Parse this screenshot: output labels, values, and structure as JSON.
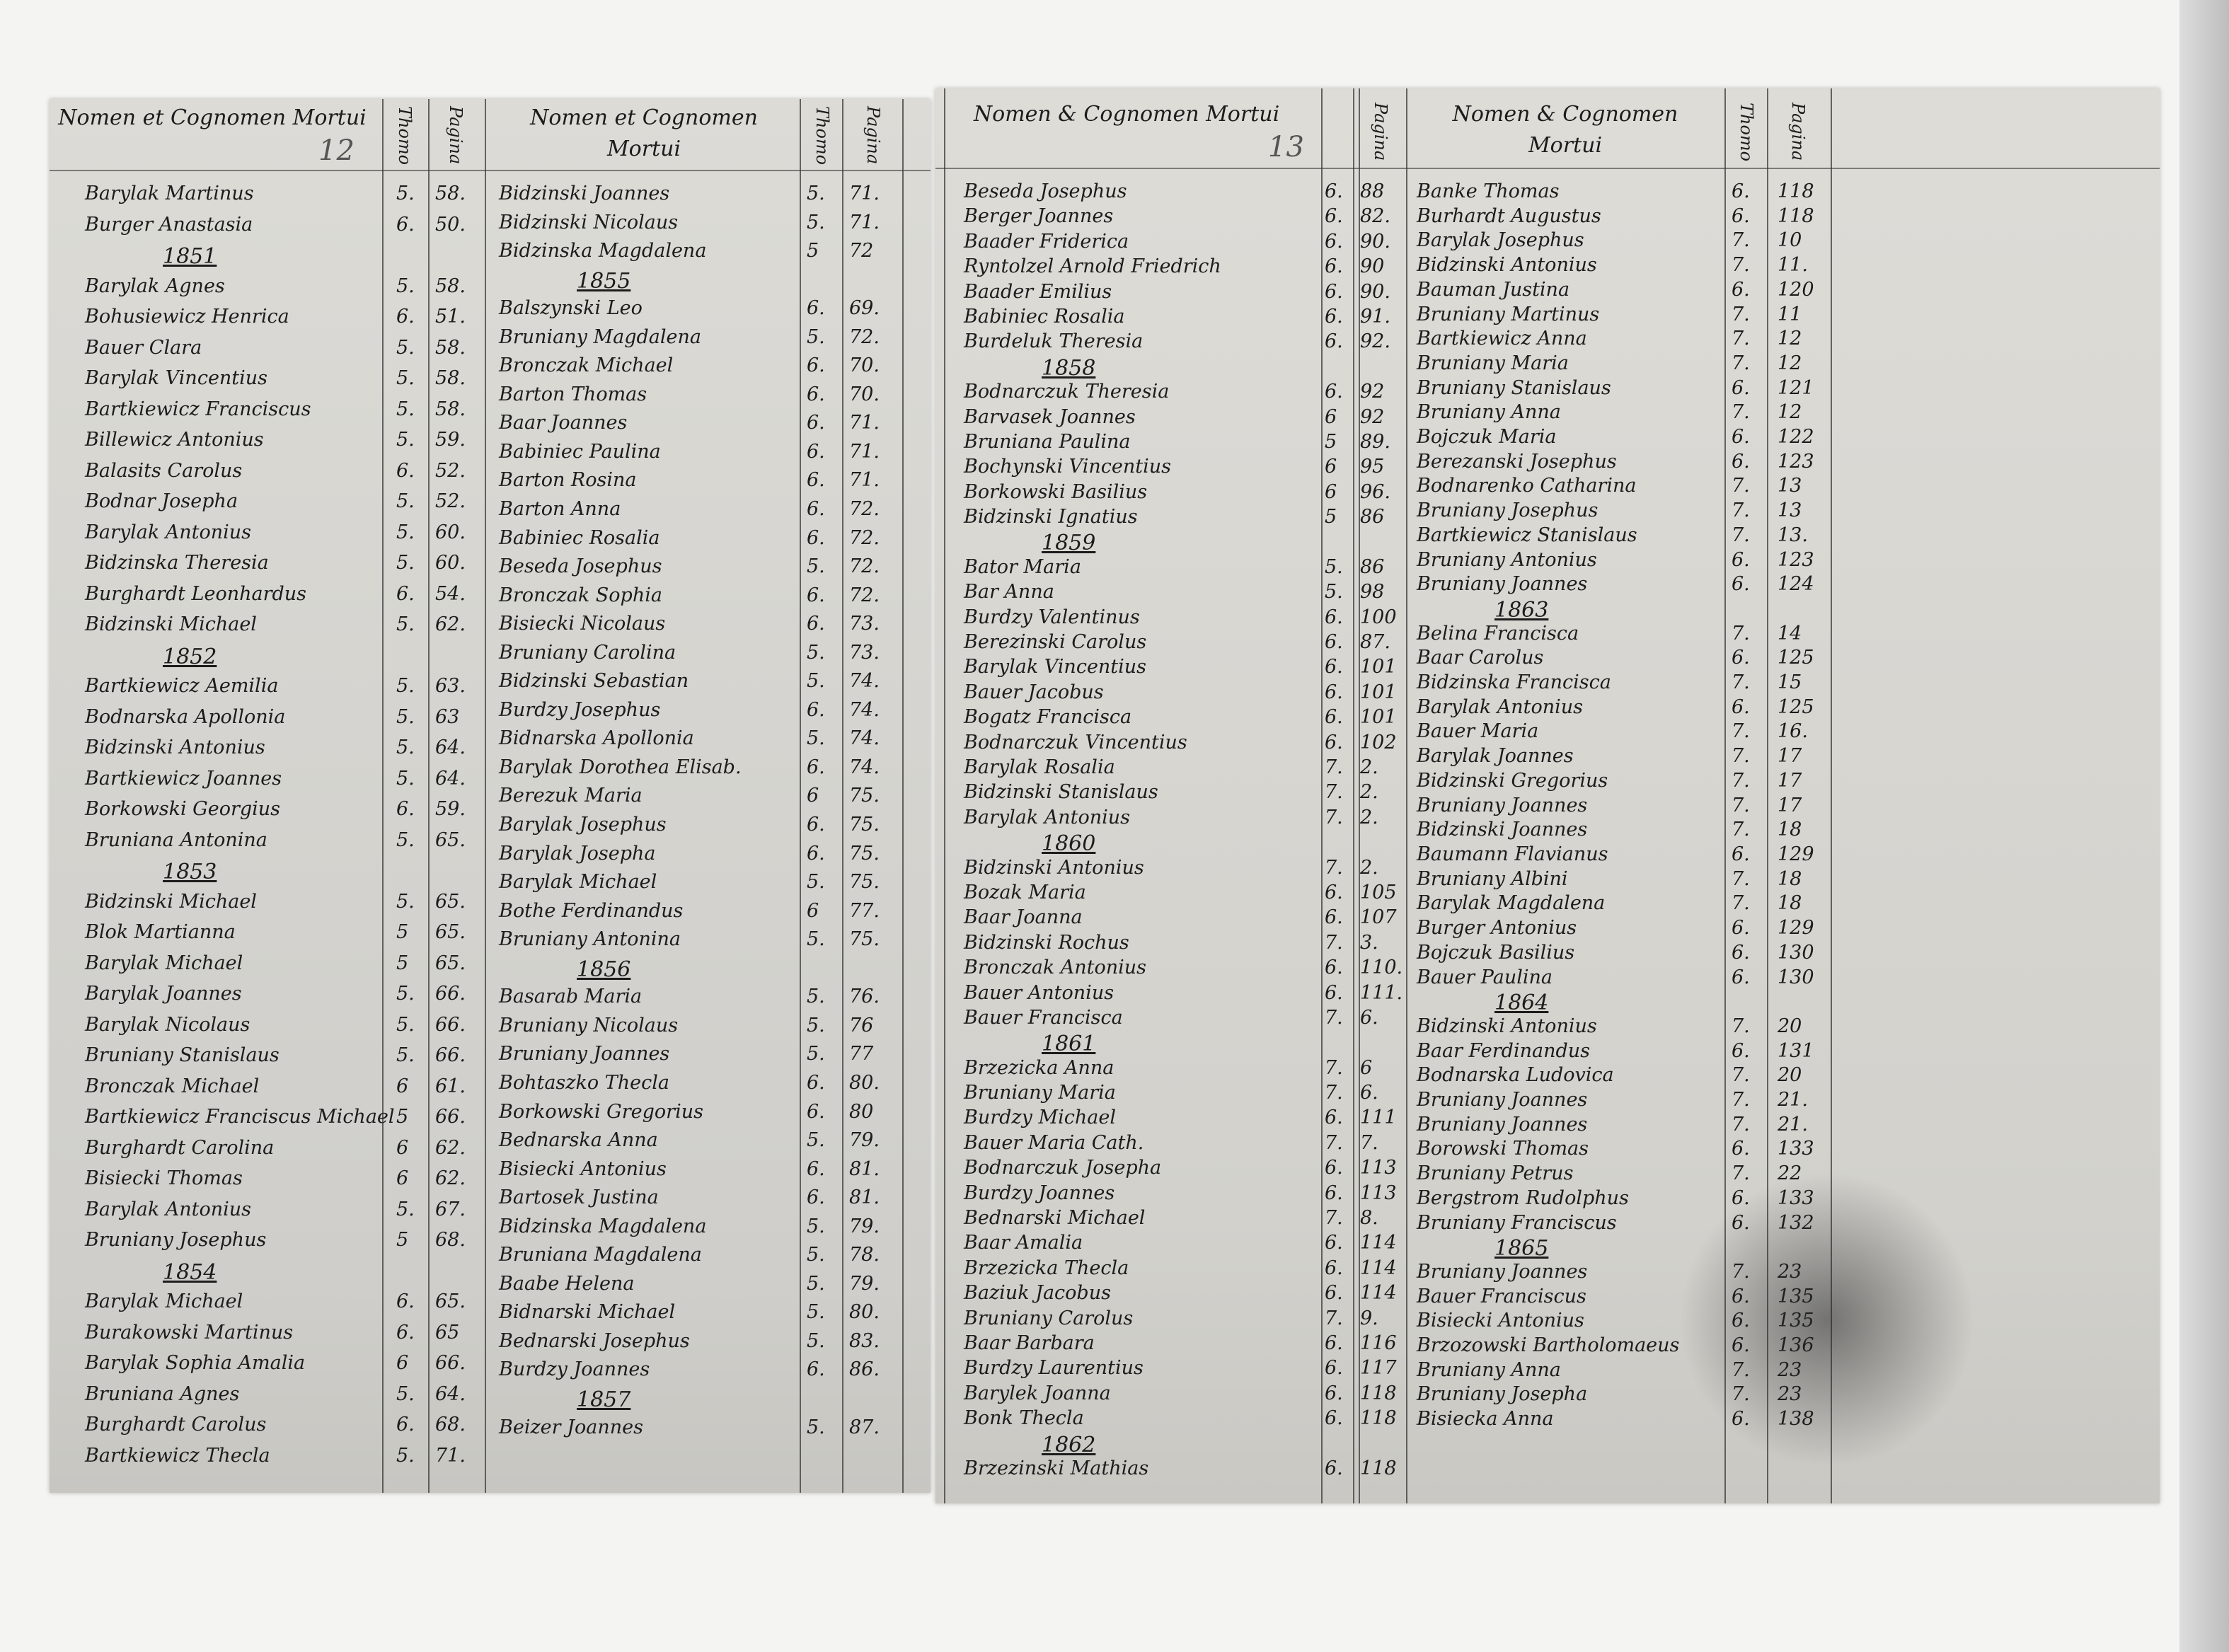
{
  "headers": {
    "name_header": "Nomen et Cognomen Mortui",
    "name_header_right": "Nomen & Cognomen Mortui",
    "tome": "Thomo",
    "pagina": "Pagina",
    "page_left_number": "12",
    "page_right_number": "13"
  },
  "columns": [
    [
      {
        "n": "Barylak Martinus",
        "t": "5.",
        "p": "58."
      },
      {
        "n": "Burger Anastasia",
        "t": "6.",
        "p": "50."
      },
      {
        "y": "1851"
      },
      {
        "n": "Barylak Agnes",
        "t": "5.",
        "p": "58."
      },
      {
        "n": "Bohusiewicz Henrica",
        "t": "6.",
        "p": "51."
      },
      {
        "n": "Bauer Clara",
        "t": "5.",
        "p": "58."
      },
      {
        "n": "Barylak Vincentius",
        "t": "5.",
        "p": "58."
      },
      {
        "n": "Bartkiewicz Franciscus",
        "t": "5.",
        "p": "58."
      },
      {
        "n": "Billewicz Antonius",
        "t": "5.",
        "p": "59."
      },
      {
        "n": "Balasits Carolus",
        "t": "6.",
        "p": "52."
      },
      {
        "n": "Bodnar Josepha",
        "t": "5.",
        "p": "52."
      },
      {
        "n": "Barylak Antonius",
        "t": "5.",
        "p": "60."
      },
      {
        "n": "Bidzinska Theresia",
        "t": "5.",
        "p": "60."
      },
      {
        "n": "Burghardt Leonhardus",
        "t": "6.",
        "p": "54."
      },
      {
        "n": "Bidzinski Michael",
        "t": "5.",
        "p": "62."
      },
      {
        "y": "1852"
      },
      {
        "n": "Bartkiewicz Aemilia",
        "t": "5.",
        "p": "63."
      },
      {
        "n": "Bodnarska Apollonia",
        "t": "5.",
        "p": "63"
      },
      {
        "n": "Bidzinski Antonius",
        "t": "5.",
        "p": "64."
      },
      {
        "n": "Bartkiewicz Joannes",
        "t": "5.",
        "p": "64."
      },
      {
        "n": "Borkowski Georgius",
        "t": "6.",
        "p": "59."
      },
      {
        "n": "Bruniana Antonina",
        "t": "5.",
        "p": "65."
      },
      {
        "y": "1853"
      },
      {
        "n": "Bidzinski Michael",
        "t": "5.",
        "p": "65."
      },
      {
        "n": "Blok Martianna",
        "t": "5",
        "p": "65."
      },
      {
        "n": "Barylak Michael",
        "t": "5",
        "p": "65."
      },
      {
        "n": "Barylak Joannes",
        "t": "5.",
        "p": "66."
      },
      {
        "n": "Barylak Nicolaus",
        "t": "5.",
        "p": "66."
      },
      {
        "n": "Bruniany Stanislaus",
        "t": "5.",
        "p": "66."
      },
      {
        "n": "Bronczak Michael",
        "t": "6",
        "p": "61."
      },
      {
        "n": "Bartkiewicz Franciscus Michael",
        "t": "5",
        "p": "66."
      },
      {
        "n": "Burghardt Carolina",
        "t": "6",
        "p": "62."
      },
      {
        "n": "Bisiecki Thomas",
        "t": "6",
        "p": "62."
      },
      {
        "n": "Barylak Antonius",
        "t": "5.",
        "p": "67."
      },
      {
        "n": "Bruniany Josephus",
        "t": "5",
        "p": "68."
      },
      {
        "y": "1854"
      },
      {
        "n": "Barylak Michael",
        "t": "6.",
        "p": "65."
      },
      {
        "n": "Burakowski Martinus",
        "t": "6.",
        "p": "65"
      },
      {
        "n": "Barylak Sophia Amalia",
        "t": "6",
        "p": "66."
      },
      {
        "n": "Bruniana Agnes",
        "t": "5.",
        "p": "64."
      },
      {
        "n": "Burghardt Carolus",
        "t": "6.",
        "p": "68."
      },
      {
        "n": "Bartkiewicz Thecla",
        "t": "5.",
        "p": "71."
      }
    ],
    [
      {
        "n": "Bidzinski Joannes",
        "t": "5.",
        "p": "71."
      },
      {
        "n": "Bidzinski Nicolaus",
        "t": "5.",
        "p": "71."
      },
      {
        "n": "Bidzinska Magdalena",
        "t": "5",
        "p": "72"
      },
      {
        "y": "1855"
      },
      {
        "n": "Balszynski Leo",
        "t": "6.",
        "p": "69."
      },
      {
        "n": "Bruniany Magdalena",
        "t": "5.",
        "p": "72."
      },
      {
        "n": "Bronczak Michael",
        "t": "6.",
        "p": "70."
      },
      {
        "n": "Barton Thomas",
        "t": "6.",
        "p": "70."
      },
      {
        "n": "Baar Joannes",
        "t": "6.",
        "p": "71."
      },
      {
        "n": "Babiniec Paulina",
        "t": "6.",
        "p": "71."
      },
      {
        "n": "Barton Rosina",
        "t": "6.",
        "p": "71."
      },
      {
        "n": "Barton Anna",
        "t": "6.",
        "p": "72."
      },
      {
        "n": "Babiniec Rosalia",
        "t": "6.",
        "p": "72."
      },
      {
        "n": "Beseda Josephus",
        "t": "5.",
        "p": "72."
      },
      {
        "n": "Bronczak Sophia",
        "t": "6.",
        "p": "72."
      },
      {
        "n": "Bisiecki Nicolaus",
        "t": "6.",
        "p": "73."
      },
      {
        "n": "Bruniany Carolina",
        "t": "5.",
        "p": "73."
      },
      {
        "n": "Bidzinski Sebastian",
        "t": "5.",
        "p": "74."
      },
      {
        "n": "Burdzy Josephus",
        "t": "6.",
        "p": "74."
      },
      {
        "n": "Bidnarska Apollonia",
        "t": "5.",
        "p": "74."
      },
      {
        "n": "Barylak Dorothea Elisab.",
        "t": "6.",
        "p": "74."
      },
      {
        "n": "Berezuk Maria",
        "t": "6",
        "p": "75."
      },
      {
        "n": "Barylak Josephus",
        "t": "6.",
        "p": "75."
      },
      {
        "n": "Barylak Josepha",
        "t": "6.",
        "p": "75."
      },
      {
        "n": "Barylak Michael",
        "t": "5.",
        "p": "75."
      },
      {
        "n": "Bothe Ferdinandus",
        "t": "6",
        "p": "77."
      },
      {
        "n": "Bruniany Antonina",
        "t": "5.",
        "p": "75."
      },
      {
        "y": "1856"
      },
      {
        "n": "Basarab Maria",
        "t": "5.",
        "p": "76."
      },
      {
        "n": "Bruniany Nicolaus",
        "t": "5.",
        "p": "76"
      },
      {
        "n": "Bruniany Joannes",
        "t": "5.",
        "p": "77"
      },
      {
        "n": "Bohtaszko Thecla",
        "t": "6.",
        "p": "80."
      },
      {
        "n": "Borkowski Gregorius",
        "t": "6.",
        "p": "80"
      },
      {
        "n": "Bednarska Anna",
        "t": "5.",
        "p": "79."
      },
      {
        "n": "Bisiecki Antonius",
        "t": "6.",
        "p": "81."
      },
      {
        "n": "Bartosek Justina",
        "t": "6.",
        "p": "81."
      },
      {
        "n": "Bidzinska Magdalena",
        "t": "5.",
        "p": "79."
      },
      {
        "n": "Bruniana Magdalena",
        "t": "5.",
        "p": "78."
      },
      {
        "n": "Baabe Helena",
        "t": "5.",
        "p": "79."
      },
      {
        "n": "Bidnarski Michael",
        "t": "5.",
        "p": "80."
      },
      {
        "n": "Bednarski Josephus",
        "t": "5.",
        "p": "83."
      },
      {
        "n": "Burdzy Joannes",
        "t": "6.",
        "p": "86."
      },
      {
        "y": "1857"
      },
      {
        "n": "Beizer Joannes",
        "t": "5.",
        "p": "87."
      }
    ],
    [
      {
        "n": "Beseda Josephus",
        "t": "6.",
        "p": "88"
      },
      {
        "n": "Berger Joannes",
        "t": "6.",
        "p": "82."
      },
      {
        "n": "Baader Friderica",
        "t": "6.",
        "p": "90."
      },
      {
        "n": "Ryntolzel Arnold Friedrich",
        "t": "6.",
        "p": "90"
      },
      {
        "n": "Baader Emilius",
        "t": "6.",
        "p": "90."
      },
      {
        "n": "Babiniec Rosalia",
        "t": "6.",
        "p": "91."
      },
      {
        "n": "Burdeluk Theresia",
        "t": "6.",
        "p": "92."
      },
      {
        "y": "1858"
      },
      {
        "n": "Bodnarczuk Theresia",
        "t": "6.",
        "p": "92"
      },
      {
        "n": "Barvasek Joannes",
        "t": "6",
        "p": "92"
      },
      {
        "n": "Bruniana Paulina",
        "t": "5",
        "p": "89."
      },
      {
        "n": "Bochynski Vincentius",
        "t": "6",
        "p": "95"
      },
      {
        "n": "Borkowski Basilius",
        "t": "6",
        "p": "96."
      },
      {
        "n": "Bidzinski Ignatius",
        "t": "5",
        "p": "86"
      },
      {
        "y": "1859"
      },
      {
        "n": "Bator Maria",
        "t": "5.",
        "p": "86"
      },
      {
        "n": "Bar Anna",
        "t": "5.",
        "p": "98"
      },
      {
        "n": "Burdzy Valentinus",
        "t": "6.",
        "p": "100"
      },
      {
        "n": "Berezinski Carolus",
        "t": "6.",
        "p": "87."
      },
      {
        "n": "Barylak Vincentius",
        "t": "6.",
        "p": "101"
      },
      {
        "n": "Bauer Jacobus",
        "t": "6.",
        "p": "101"
      },
      {
        "n": "Bogatz Francisca",
        "t": "6.",
        "p": "101"
      },
      {
        "n": "Bodnarczuk Vincentius",
        "t": "6.",
        "p": "102"
      },
      {
        "n": "Barylak Rosalia",
        "t": "7.",
        "p": "2."
      },
      {
        "n": "Bidzinski Stanislaus",
        "t": "7.",
        "p": "2."
      },
      {
        "n": "Barylak Antonius",
        "t": "7.",
        "p": "2."
      },
      {
        "y": "1860"
      },
      {
        "n": "Bidzinski Antonius",
        "t": "7.",
        "p": "2."
      },
      {
        "n": "Bozak Maria",
        "t": "6.",
        "p": "105"
      },
      {
        "n": "Baar Joanna",
        "t": "6.",
        "p": "107"
      },
      {
        "n": "Bidzinski Rochus",
        "t": "7.",
        "p": "3."
      },
      {
        "n": "Bronczak Antonius",
        "t": "6.",
        "p": "110."
      },
      {
        "n": "Bauer Antonius",
        "t": "6.",
        "p": "111."
      },
      {
        "n": "Bauer Francisca",
        "t": "7.",
        "p": "6."
      },
      {
        "y": "1861"
      },
      {
        "n": "Brzezicka Anna",
        "t": "7.",
        "p": "6"
      },
      {
        "n": "Bruniany Maria",
        "t": "7.",
        "p": "6."
      },
      {
        "n": "Burdzy Michael",
        "t": "6.",
        "p": "111"
      },
      {
        "n": "Bauer Maria Cath.",
        "t": "7.",
        "p": "7."
      },
      {
        "n": "Bodnarczuk Josepha",
        "t": "6.",
        "p": "113"
      },
      {
        "n": "Burdzy Joannes",
        "t": "6.",
        "p": "113"
      },
      {
        "n": "Bednarski Michael",
        "t": "7.",
        "p": "8."
      },
      {
        "n": "Baar Amalia",
        "t": "6.",
        "p": "114"
      },
      {
        "n": "Brzezicka Thecla",
        "t": "6.",
        "p": "114"
      },
      {
        "n": "Baziuk Jacobus",
        "t": "6.",
        "p": "114"
      },
      {
        "n": "Bruniany Carolus",
        "t": "7.",
        "p": "9."
      },
      {
        "n": "Baar Barbara",
        "t": "6.",
        "p": "116"
      },
      {
        "n": "Burdzy Laurentius",
        "t": "6.",
        "p": "117"
      },
      {
        "n": "Barylek Joanna",
        "t": "6.",
        "p": "118"
      },
      {
        "n": "Bonk Thecla",
        "t": "6.",
        "p": "118"
      },
      {
        "y": "1862"
      },
      {
        "n": "Brzezinski Mathias",
        "t": "6.",
        "p": "118"
      }
    ],
    [
      {
        "n": "Banke Thomas",
        "t": "6.",
        "p": "118"
      },
      {
        "n": "Burhardt Augustus",
        "t": "6.",
        "p": "118"
      },
      {
        "n": "Barylak Josephus",
        "t": "7.",
        "p": "10"
      },
      {
        "n": "Bidzinski Antonius",
        "t": "7.",
        "p": "11."
      },
      {
        "n": "Bauman Justina",
        "t": "6.",
        "p": "120"
      },
      {
        "n": "Bruniany Martinus",
        "t": "7.",
        "p": "11"
      },
      {
        "n": "Bartkiewicz Anna",
        "t": "7.",
        "p": "12"
      },
      {
        "n": "Bruniany Maria",
        "t": "7.",
        "p": "12"
      },
      {
        "n": "Bruniany Stanislaus",
        "t": "6.",
        "p": "121"
      },
      {
        "n": "Bruniany Anna",
        "t": "7.",
        "p": "12"
      },
      {
        "n": "Bojczuk Maria",
        "t": "6.",
        "p": "122"
      },
      {
        "n": "Berezanski Josephus",
        "t": "6.",
        "p": "123"
      },
      {
        "n": "Bodnarenko Catharina",
        "t": "7.",
        "p": "13"
      },
      {
        "n": "Bruniany Josephus",
        "t": "7.",
        "p": "13"
      },
      {
        "n": "Bartkiewicz Stanislaus",
        "t": "7.",
        "p": "13."
      },
      {
        "n": "Bruniany Antonius",
        "t": "6.",
        "p": "123"
      },
      {
        "n": "Bruniany Joannes",
        "t": "6.",
        "p": "124"
      },
      {
        "y": "1863"
      },
      {
        "n": "Belina Francisca",
        "t": "7.",
        "p": "14"
      },
      {
        "n": "Baar Carolus",
        "t": "6.",
        "p": "125"
      },
      {
        "n": "Bidzinska Francisca",
        "t": "7.",
        "p": "15"
      },
      {
        "n": "Barylak Antonius",
        "t": "6.",
        "p": "125"
      },
      {
        "n": "Bauer Maria",
        "t": "7.",
        "p": "16."
      },
      {
        "n": "Barylak Joannes",
        "t": "7.",
        "p": "17"
      },
      {
        "n": "Bidzinski Gregorius",
        "t": "7.",
        "p": "17"
      },
      {
        "n": "Bruniany Joannes",
        "t": "7.",
        "p": "17"
      },
      {
        "n": "Bidzinski Joannes",
        "t": "7.",
        "p": "18"
      },
      {
        "n": "Baumann Flavianus",
        "t": "6.",
        "p": "129"
      },
      {
        "n": "Bruniany Albini",
        "t": "7.",
        "p": "18"
      },
      {
        "n": "Barylak Magdalena",
        "t": "7.",
        "p": "18"
      },
      {
        "n": "Burger Antonius",
        "t": "6.",
        "p": "129"
      },
      {
        "n": "Bojczuk Basilius",
        "t": "6.",
        "p": "130"
      },
      {
        "n": "Bauer Paulina",
        "t": "6.",
        "p": "130"
      },
      {
        "y": "1864"
      },
      {
        "n": "Bidzinski Antonius",
        "t": "7.",
        "p": "20"
      },
      {
        "n": "Baar Ferdinandus",
        "t": "6.",
        "p": "131"
      },
      {
        "n": "Bodnarska Ludovica",
        "t": "7.",
        "p": "20"
      },
      {
        "n": "Bruniany Joannes",
        "t": "7.",
        "p": "21."
      },
      {
        "n": "Bruniany Joannes",
        "t": "7.",
        "p": "21."
      },
      {
        "n": "Borowski Thomas",
        "t": "6.",
        "p": "133"
      },
      {
        "n": "Bruniany Petrus",
        "t": "7.",
        "p": "22"
      },
      {
        "n": "Bergstrom Rudolphus",
        "t": "6.",
        "p": "133"
      },
      {
        "n": "Bruniany Franciscus",
        "t": "6.",
        "p": "132"
      },
      {
        "y": "1865"
      },
      {
        "n": "Bruniany Joannes",
        "t": "7.",
        "p": "23"
      },
      {
        "n": "Bauer Franciscus",
        "t": "6.",
        "p": "135"
      },
      {
        "n": "Bisiecki Antonius",
        "t": "6.",
        "p": "135"
      },
      {
        "n": "Brzozowski Bartholomaeus",
        "t": "6.",
        "p": "136"
      },
      {
        "n": "Bruniany Anna",
        "t": "7.",
        "p": "23"
      },
      {
        "n": "Bruniany Josepha",
        "t": "7.",
        "p": "23"
      },
      {
        "n": "Bisiecka Anna",
        "t": "6.",
        "p": "138"
      }
    ]
  ]
}
